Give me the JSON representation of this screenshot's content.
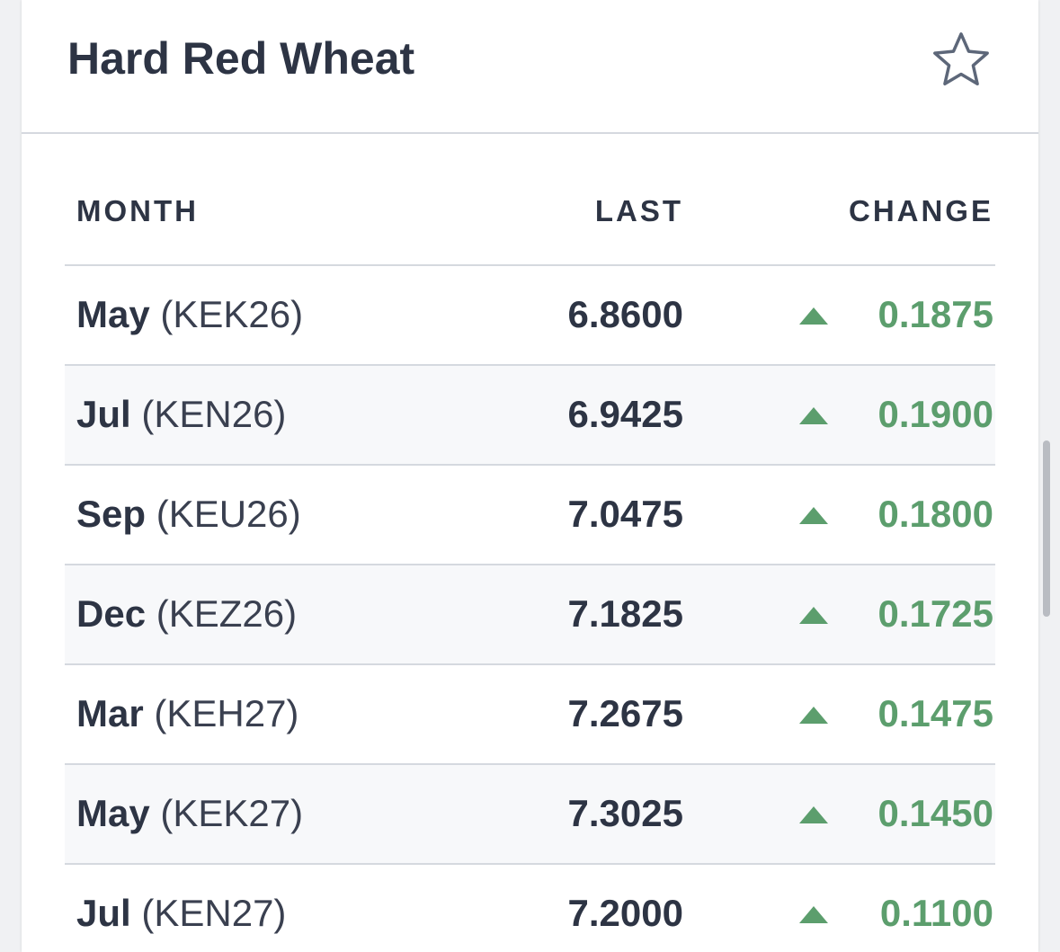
{
  "header": {
    "title": "Hard Red Wheat"
  },
  "table": {
    "columns": [
      "MONTH",
      "LAST",
      "CHANGE"
    ],
    "rows": [
      {
        "month": "May",
        "symbol": "(KEK26)",
        "last": "6.8600",
        "change": "0.1875"
      },
      {
        "month": "Jul",
        "symbol": "(KEN26)",
        "last": "6.9425",
        "change": "0.1900"
      },
      {
        "month": "Sep",
        "symbol": "(KEU26)",
        "last": "7.0475",
        "change": "0.1800"
      },
      {
        "month": "Dec",
        "symbol": "(KEZ26)",
        "last": "7.1825",
        "change": "0.1725"
      },
      {
        "month": "Mar",
        "symbol": "(KEH27)",
        "last": "7.2675",
        "change": "0.1475"
      },
      {
        "month": "May",
        "symbol": "(KEK27)",
        "last": "7.3025",
        "change": "0.1450"
      },
      {
        "month": "Jul",
        "symbol": "(KEN27)",
        "last": "7.2000",
        "change": "0.1100"
      }
    ]
  }
}
